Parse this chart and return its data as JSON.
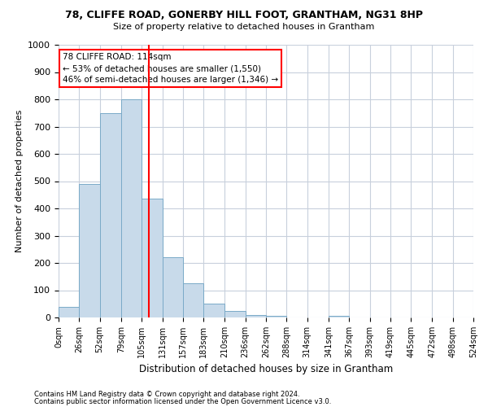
{
  "title1": "78, CLIFFE ROAD, GONERBY HILL FOOT, GRANTHAM, NG31 8HP",
  "title2": "Size of property relative to detached houses in Grantham",
  "xlabel": "Distribution of detached houses by size in Grantham",
  "ylabel": "Number of detached properties",
  "footnote1": "Contains HM Land Registry data © Crown copyright and database right 2024.",
  "footnote2": "Contains public sector information licensed under the Open Government Licence v3.0.",
  "bar_color": "#c8daea",
  "bar_edge_color": "#7aaac8",
  "grid_color": "#c8d0dc",
  "annotation_text": "78 CLIFFE ROAD: 114sqm\n← 53% of detached houses are smaller (1,550)\n46% of semi-detached houses are larger (1,346) →",
  "property_size": 114,
  "bin_edges": [
    0,
    26,
    52,
    79,
    105,
    131,
    157,
    183,
    210,
    236,
    262,
    288,
    314,
    341,
    367,
    393,
    419,
    445,
    472,
    498,
    524
  ],
  "bar_heights": [
    40,
    490,
    750,
    800,
    435,
    220,
    125,
    50,
    25,
    10,
    5,
    0,
    0,
    5,
    0,
    0,
    0,
    0,
    0,
    0
  ],
  "ylim": [
    0,
    1000
  ],
  "yticks": [
    0,
    100,
    200,
    300,
    400,
    500,
    600,
    700,
    800,
    900,
    1000
  ],
  "red_line_x": 114,
  "background_color": "#ffffff",
  "fig_width": 6.0,
  "fig_height": 5.0,
  "dpi": 100
}
